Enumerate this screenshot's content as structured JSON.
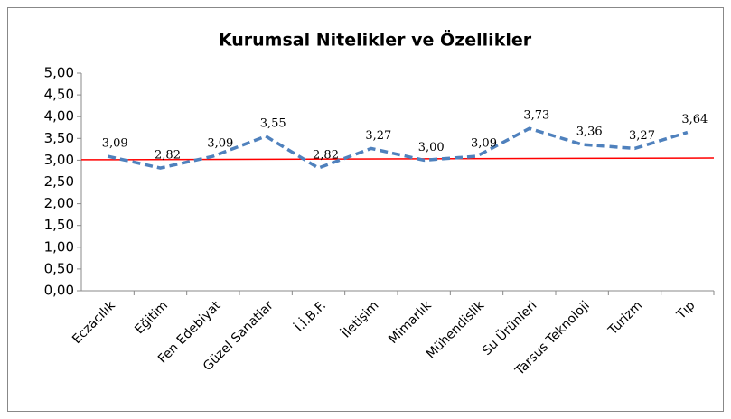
{
  "chart_data": {
    "type": "line",
    "title": "Kurumsal Nitelikler ve Özellikler",
    "categories": [
      "Eczacılık",
      "Eğitim",
      "Fen Edebiyat",
      "Güzel Sanatlar",
      "İ.İ.B.F.",
      "İletişim",
      "Mimarlık",
      "Mühendislik",
      "Su Ürünleri",
      "Tarsus Teknoloji",
      "Turizm",
      "Tıp"
    ],
    "series": [
      {
        "color": "#4f81bd",
        "values": [
          3.09,
          2.82,
          3.09,
          3.55,
          2.82,
          3.27,
          3.0,
          3.09,
          3.73,
          3.36,
          3.27,
          3.64
        ],
        "value_labels": [
          "3,09",
          "2,82",
          "3,09",
          "3,55",
          "2,82",
          "3,27",
          "3,00",
          "3,09",
          "3,73",
          "3,36",
          "3,27",
          "3,64"
        ]
      }
    ],
    "reference_line": {
      "color": "#ff0000",
      "values": [
        3.01,
        3.05
      ]
    },
    "ylim": [
      0,
      5
    ],
    "yticks": [
      {
        "value": 0,
        "label": "0,00"
      },
      {
        "value": 0.5,
        "label": "0,50"
      },
      {
        "value": 1,
        "label": "1,00"
      },
      {
        "value": 1.5,
        "label": "1,50"
      },
      {
        "value": 2,
        "label": "2,00"
      },
      {
        "value": 2.5,
        "label": "2,50"
      },
      {
        "value": 3,
        "label": "3,00"
      },
      {
        "value": 3.5,
        "label": "3,50"
      },
      {
        "value": 4,
        "label": "4,00"
      },
      {
        "value": 4.5,
        "label": "4,50"
      },
      {
        "value": 5,
        "label": "5,00"
      }
    ],
    "grid": false
  }
}
